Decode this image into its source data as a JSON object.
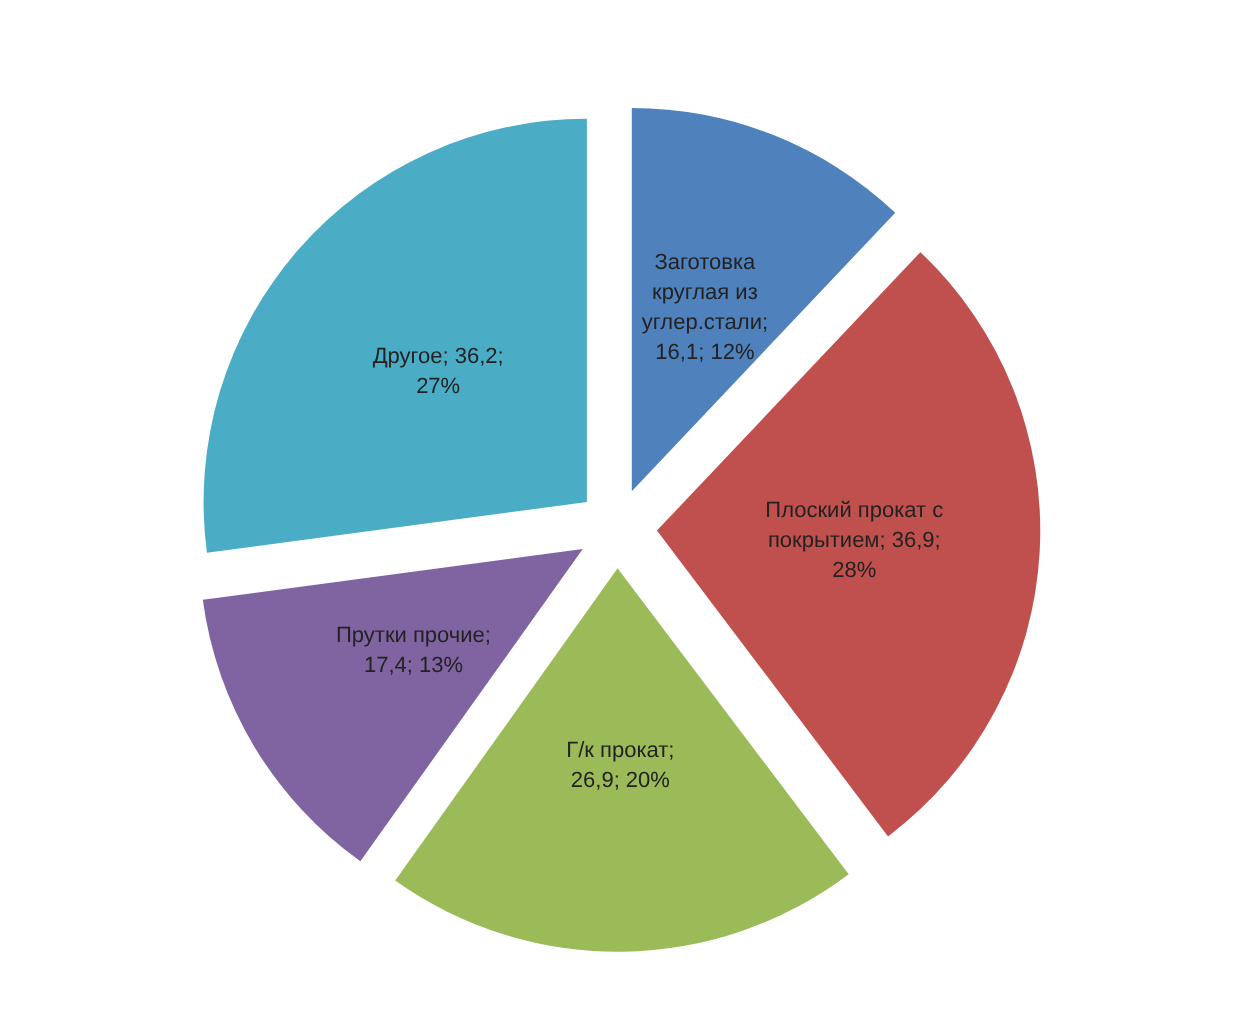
{
  "chart_data": {
    "type": "pie",
    "categories": [
      "Заготовка круглая из углер.стали",
      "Плоский прокат с покрытием",
      "Г/к прокат",
      "Прутки прочие",
      "Другое"
    ],
    "values": [
      16.1,
      36.9,
      26.9,
      17.4,
      36.2
    ],
    "value_labels": [
      "; 16,1; 12%",
      "; 36,9; 28%",
      "; 26,9; 20%",
      "; 17,4; 13%",
      "; 36,2; 27%"
    ],
    "colors": [
      "#4f81bd",
      "#c0504d",
      "#9bbb59",
      "#8064a2",
      "#4bacc6"
    ],
    "legend": false
  }
}
